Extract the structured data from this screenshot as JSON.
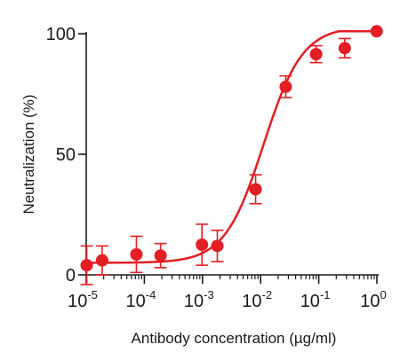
{
  "chart_data": {
    "type": "scatter",
    "xlabel": "Antibody concentration (µg/ml)",
    "ylabel": "Neutralization (%)",
    "x_scale": "log",
    "xlim": [
      1e-05,
      1
    ],
    "ylim": [
      0,
      100
    ],
    "x_ticks": [
      {
        "base": "10",
        "exp": "-5",
        "value": 1e-05
      },
      {
        "base": "10",
        "exp": "-4",
        "value": 0.0001
      },
      {
        "base": "10",
        "exp": "-3",
        "value": 0.001
      },
      {
        "base": "10",
        "exp": "-2",
        "value": 0.01
      },
      {
        "base": "10",
        "exp": "-1",
        "value": 0.1
      },
      {
        "base": "10",
        "exp": "0",
        "value": 1
      }
    ],
    "y_ticks": [
      "0",
      "50",
      "100"
    ],
    "y_tick_values": [
      0,
      50,
      100
    ],
    "grid": false,
    "color": "#e31e24",
    "points": [
      {
        "x": 1.02e-05,
        "y": 4,
        "err": 8
      },
      {
        "x": 1.88e-05,
        "y": 6,
        "err": 6
      },
      {
        "x": 7.3e-05,
        "y": 8.5,
        "err": 7.5
      },
      {
        "x": 0.00019,
        "y": 8,
        "err": 5
      },
      {
        "x": 0.00098,
        "y": 12.5,
        "err": 8.5
      },
      {
        "x": 0.0018,
        "y": 12,
        "err": 6.5
      },
      {
        "x": 0.0082,
        "y": 35.5,
        "err": 6
      },
      {
        "x": 0.027,
        "y": 78,
        "err": 4.5
      },
      {
        "x": 0.09,
        "y": 91.5,
        "err": 3.5
      },
      {
        "x": 0.28,
        "y": 94,
        "err": 4
      },
      {
        "x": 0.99,
        "y": 101,
        "err": 0
      }
    ],
    "fit": {
      "model": "4PL",
      "bottom": 5,
      "top": 103,
      "log_ec50": -1.95,
      "hill": 1.3
    }
  }
}
